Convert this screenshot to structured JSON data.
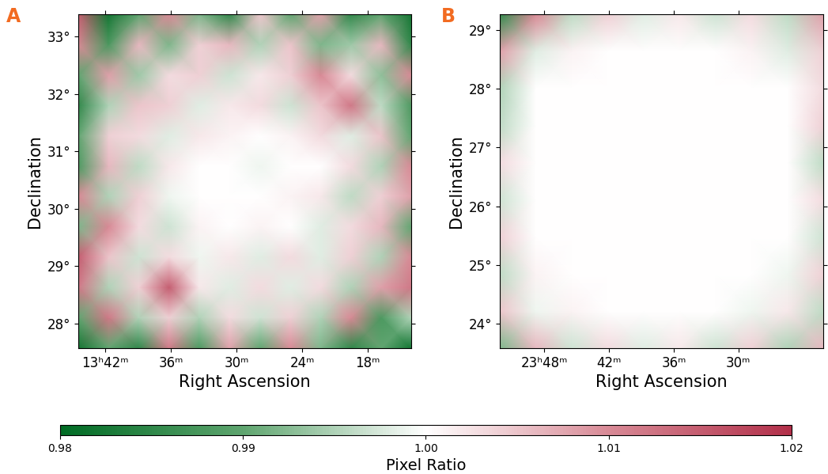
{
  "chart_data": [
    {
      "type": "heatmap",
      "title": "A",
      "x_label": "Right Ascension",
      "y_label": "Declination",
      "xlim": [
        206.11,
        198.51
      ],
      "ylim": [
        27.57,
        33.39
      ],
      "xticks": [
        {
          "value": 205.5,
          "label": "13ʰ42ᵐ"
        },
        {
          "value": 204.0,
          "label": "36ᵐ"
        },
        {
          "value": 202.5,
          "label": "30ᵐ"
        },
        {
          "value": 201.0,
          "label": "24ᵐ"
        },
        {
          "value": 199.5,
          "label": "18ᵐ"
        }
      ],
      "yticks": [
        {
          "value": 28,
          "label": "28°"
        },
        {
          "value": 29,
          "label": "29°"
        },
        {
          "value": 30,
          "label": "30°"
        },
        {
          "value": 31,
          "label": "31°"
        },
        {
          "value": 32,
          "label": "32°"
        },
        {
          "value": 33,
          "label": "33°"
        }
      ],
      "x": [
        206.11,
        205.42,
        204.73,
        204.04,
        203.35,
        202.66,
        201.96,
        201.27,
        200.58,
        199.89,
        199.2,
        198.51
      ],
      "y": [
        27.57,
        28.1,
        28.63,
        29.16,
        29.69,
        30.22,
        30.74,
        31.27,
        31.8,
        32.33,
        32.86,
        33.39
      ],
      "cells": [
        [
          0.982,
          0.99,
          0.985,
          1.012,
          0.988,
          1.008,
          0.99,
          1.01,
          0.992,
          0.985,
          0.99,
          0.982
        ],
        [
          0.99,
          1.012,
          0.995,
          1.004,
          0.995,
          1.003,
          0.997,
          1.004,
          0.995,
          1.01,
          0.988,
          0.995
        ],
        [
          1.012,
          0.995,
          1.004,
          1.015,
          1.002,
          0.998,
          1.003,
          0.998,
          1.003,
          0.995,
          1.008,
          1.012
        ],
        [
          1.015,
          1.005,
          0.997,
          1.003,
          0.999,
          1.002,
          0.998,
          1.003,
          0.998,
          1.004,
          0.995,
          1.01
        ],
        [
          0.992,
          1.01,
          1.003,
          0.997,
          1.001,
          1.0,
          1.001,
          1.0,
          0.998,
          1.003,
          1.006,
          0.99
        ],
        [
          1.01,
          0.995,
          1.004,
          0.999,
          1.0,
          1.0,
          1.0,
          1.001,
          1.002,
          0.996,
          1.004,
          1.008
        ],
        [
          0.988,
          1.006,
          0.996,
          1.002,
          1.0,
          1.0,
          0.999,
          1.0,
          1.0,
          1.003,
          0.995,
          1.01
        ],
        [
          0.99,
          1.004,
          1.003,
          0.998,
          1.002,
          1.001,
          1.0,
          1.001,
          1.003,
          0.998,
          1.005,
          0.99
        ],
        [
          0.985,
          0.995,
          1.005,
          1.004,
          0.998,
          1.002,
          1.003,
          0.997,
          1.005,
          1.012,
          0.996,
          0.988
        ],
        [
          0.99,
          1.008,
          0.994,
          1.003,
          1.004,
          0.997,
          1.002,
          1.004,
          1.01,
          1.003,
          0.993,
          1.01
        ],
        [
          1.01,
          0.988,
          1.006,
          0.992,
          1.004,
          1.006,
          0.995,
          1.005,
          0.992,
          0.994,
          1.006,
          0.985
        ],
        [
          1.015,
          0.982,
          0.99,
          1.01,
          0.992,
          0.985,
          1.005,
          0.99,
          1.008,
          0.985,
          0.99,
          0.982
        ]
      ]
    },
    {
      "type": "heatmap",
      "title": "B",
      "x_label": "Right Ascension",
      "y_label": "Declination",
      "xlim": [
        358.03,
        350.53
      ],
      "ylim": [
        23.58,
        29.27
      ],
      "xticks": [
        {
          "value": 357.0,
          "label": "23ʰ48ᵐ"
        },
        {
          "value": 355.5,
          "label": "42ᵐ"
        },
        {
          "value": 354.0,
          "label": "36ᵐ"
        },
        {
          "value": 352.5,
          "label": "30ᵐ"
        }
      ],
      "yticks": [
        {
          "value": 24,
          "label": "24°"
        },
        {
          "value": 25,
          "label": "25°"
        },
        {
          "value": 26,
          "label": "26°"
        },
        {
          "value": 27,
          "label": "27°"
        },
        {
          "value": 28,
          "label": "28°"
        },
        {
          "value": 29,
          "label": "29°"
        }
      ],
      "x": [
        358.03,
        357.2,
        356.36,
        355.53,
        354.7,
        353.86,
        353.03,
        352.2,
        351.36,
        350.53
      ],
      "y": [
        23.58,
        24.21,
        24.84,
        25.48,
        26.11,
        26.74,
        27.37,
        28.01,
        28.64,
        29.27
      ],
      "cells": [
        [
          0.992,
          1.006,
          0.997,
          1.003,
          0.998,
          1.002,
          0.997,
          1.004,
          0.995,
          1.006
        ],
        [
          1.005,
          0.999,
          1.001,
          1.0,
          1.0,
          1.0,
          1.0,
          0.999,
          1.002,
          0.996
        ],
        [
          0.996,
          1.001,
          1.0,
          1.0,
          1.0,
          1.0,
          1.0,
          1.0,
          0.999,
          1.004
        ],
        [
          1.004,
          1.0,
          1.0,
          1.0,
          1.0,
          1.0,
          1.0,
          1.0,
          1.0,
          0.997
        ],
        [
          0.997,
          1.0,
          1.0,
          1.0,
          1.0,
          1.0,
          1.0,
          1.0,
          1.0,
          1.003
        ],
        [
          1.003,
          1.0,
          1.0,
          1.0,
          1.0,
          1.0,
          1.0,
          1.0,
          1.0,
          0.996
        ],
        [
          0.996,
          1.0,
          1.0,
          1.0,
          1.0,
          1.0,
          1.0,
          1.0,
          1.0,
          1.004
        ],
        [
          0.995,
          1.0,
          1.0,
          1.0,
          1.0,
          1.0,
          1.0,
          1.0,
          1.0,
          1.003
        ],
        [
          1.008,
          0.998,
          1.001,
          1.0,
          1.0,
          1.0,
          1.0,
          1.001,
          0.998,
          1.004
        ],
        [
          0.985,
          1.01,
          0.996,
          1.004,
          0.998,
          1.002,
          0.997,
          1.003,
          0.996,
          1.008
        ]
      ]
    }
  ],
  "colorbar": {
    "label": "Pixel Ratio",
    "range": [
      0.98,
      1.02
    ],
    "ticks": [
      0.98,
      0.99,
      {
        "value": 1.0,
        "label": "1.00"
      },
      1.01,
      1.02
    ]
  }
}
